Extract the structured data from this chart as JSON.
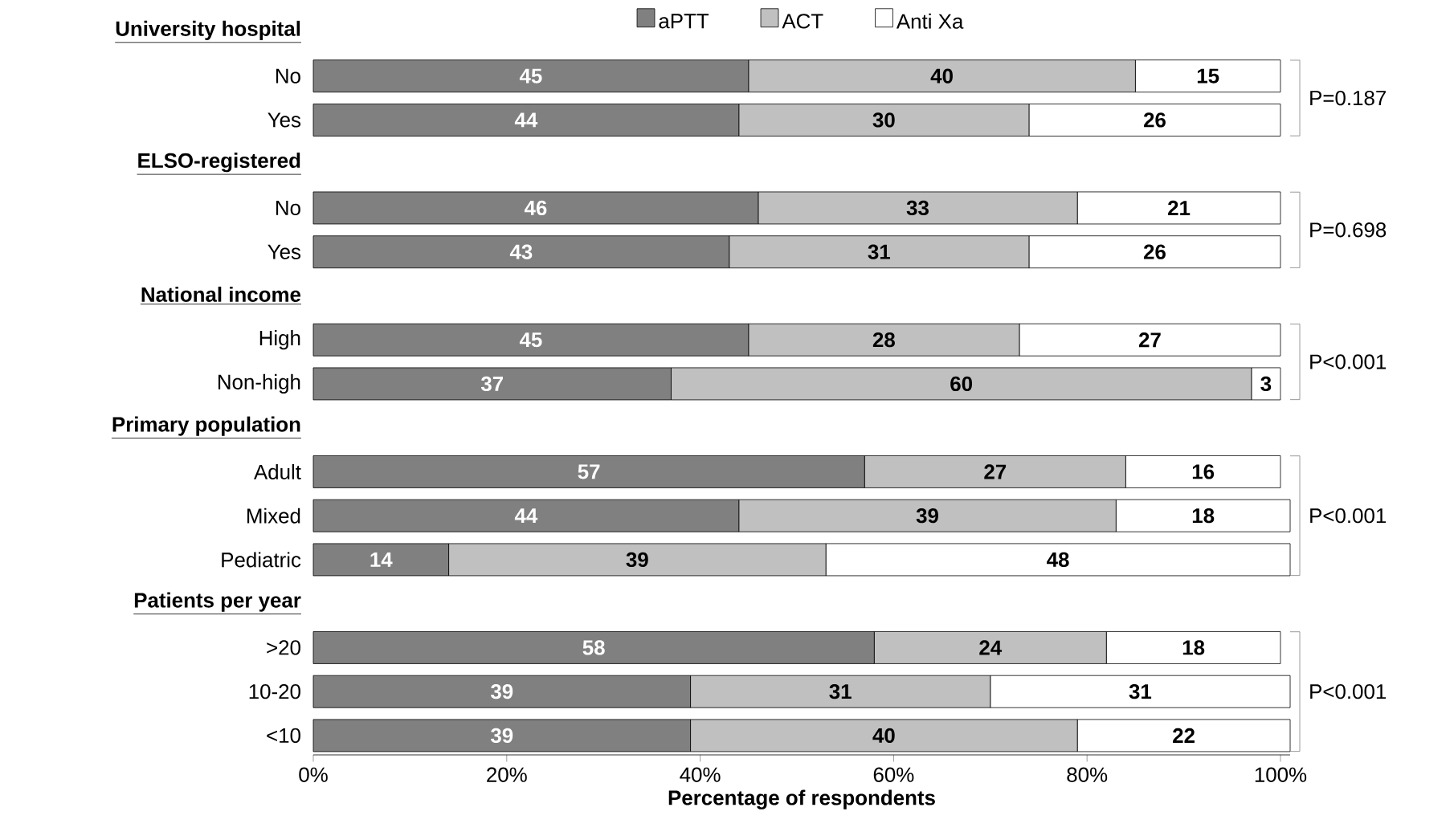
{
  "chart_data": {
    "type": "bar",
    "orientation": "horizontal",
    "stacked": true,
    "data_labels": true,
    "legend": "top",
    "categories": [
      "University hospital",
      "No",
      "Yes",
      "ELSO-registered",
      "No",
      "Yes",
      "National income",
      "High",
      "Non-high",
      "Primary population",
      "Adult",
      "Mixed",
      "Pediatric",
      "Patients per year",
      ">20",
      "10-20",
      "<10"
    ],
    "series": [
      {
        "name": "aPTT",
        "color": "#808080",
        "values": [
          null,
          45,
          44,
          null,
          46,
          43,
          null,
          45,
          37,
          null,
          57,
          44,
          14,
          null,
          58,
          39,
          39
        ]
      },
      {
        "name": "ACT",
        "color": "#c0c0c0",
        "values": [
          null,
          40,
          30,
          null,
          33,
          31,
          null,
          28,
          60,
          null,
          27,
          39,
          39,
          null,
          24,
          31,
          40
        ]
      },
      {
        "name": "Anti Xa",
        "color": "#ffffff",
        "values": [
          null,
          15,
          26,
          null,
          21,
          26,
          null,
          27,
          3,
          null,
          16,
          18,
          48,
          null,
          18,
          31,
          22
        ]
      }
    ],
    "xlim": [
      0,
      101
    ],
    "xticks": [
      {
        "value": 0,
        "label": "0%"
      },
      {
        "value": 20,
        "label": "20%"
      },
      {
        "value": 40,
        "label": "40%"
      },
      {
        "value": 60,
        "label": "60%"
      },
      {
        "value": 80,
        "label": "80%"
      },
      {
        "value": 100,
        "label": "100%"
      }
    ],
    "xlabel": "Percentage of respondents",
    "annotations": [
      "P=0.187",
      "P=0.698",
      "P<0.001",
      "P<0.001",
      "P<0.001"
    ]
  }
}
